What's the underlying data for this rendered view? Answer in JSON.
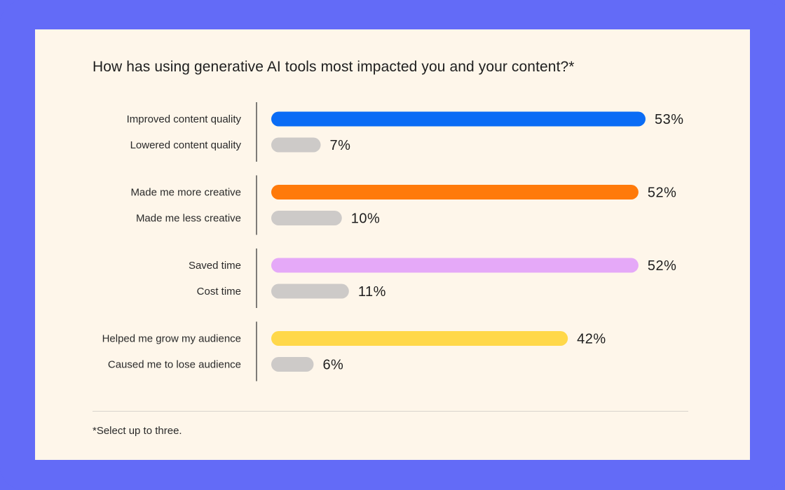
{
  "chart_data": {
    "type": "bar",
    "orientation": "horizontal",
    "title": "How has using generative AI tools most impacted you and your content?*",
    "footnote": "*Select up to three.",
    "value_suffix": "%",
    "xlim": [
      0,
      53
    ],
    "grid": false,
    "legend": "none",
    "groups": [
      {
        "bars": [
          {
            "label": "Improved content quality",
            "value": 53,
            "color": "#0A6CF5"
          },
          {
            "label": "Lowered content quality",
            "value": 7,
            "color": "#CDCAC8"
          }
        ]
      },
      {
        "bars": [
          {
            "label": "Made me more creative",
            "value": 52,
            "color": "#FF7A0A"
          },
          {
            "label": "Made me less creative",
            "value": 10,
            "color": "#CDCAC8"
          }
        ]
      },
      {
        "bars": [
          {
            "label": "Saved time",
            "value": 52,
            "color": "#E5A9F8"
          },
          {
            "label": "Cost time",
            "value": 11,
            "color": "#CDCAC8"
          }
        ]
      },
      {
        "bars": [
          {
            "label": "Helped me grow my audience",
            "value": 42,
            "color": "#FFD84A"
          },
          {
            "label": "Caused me to lose audience",
            "value": 6,
            "color": "#CDCAC8"
          }
        ]
      }
    ]
  }
}
